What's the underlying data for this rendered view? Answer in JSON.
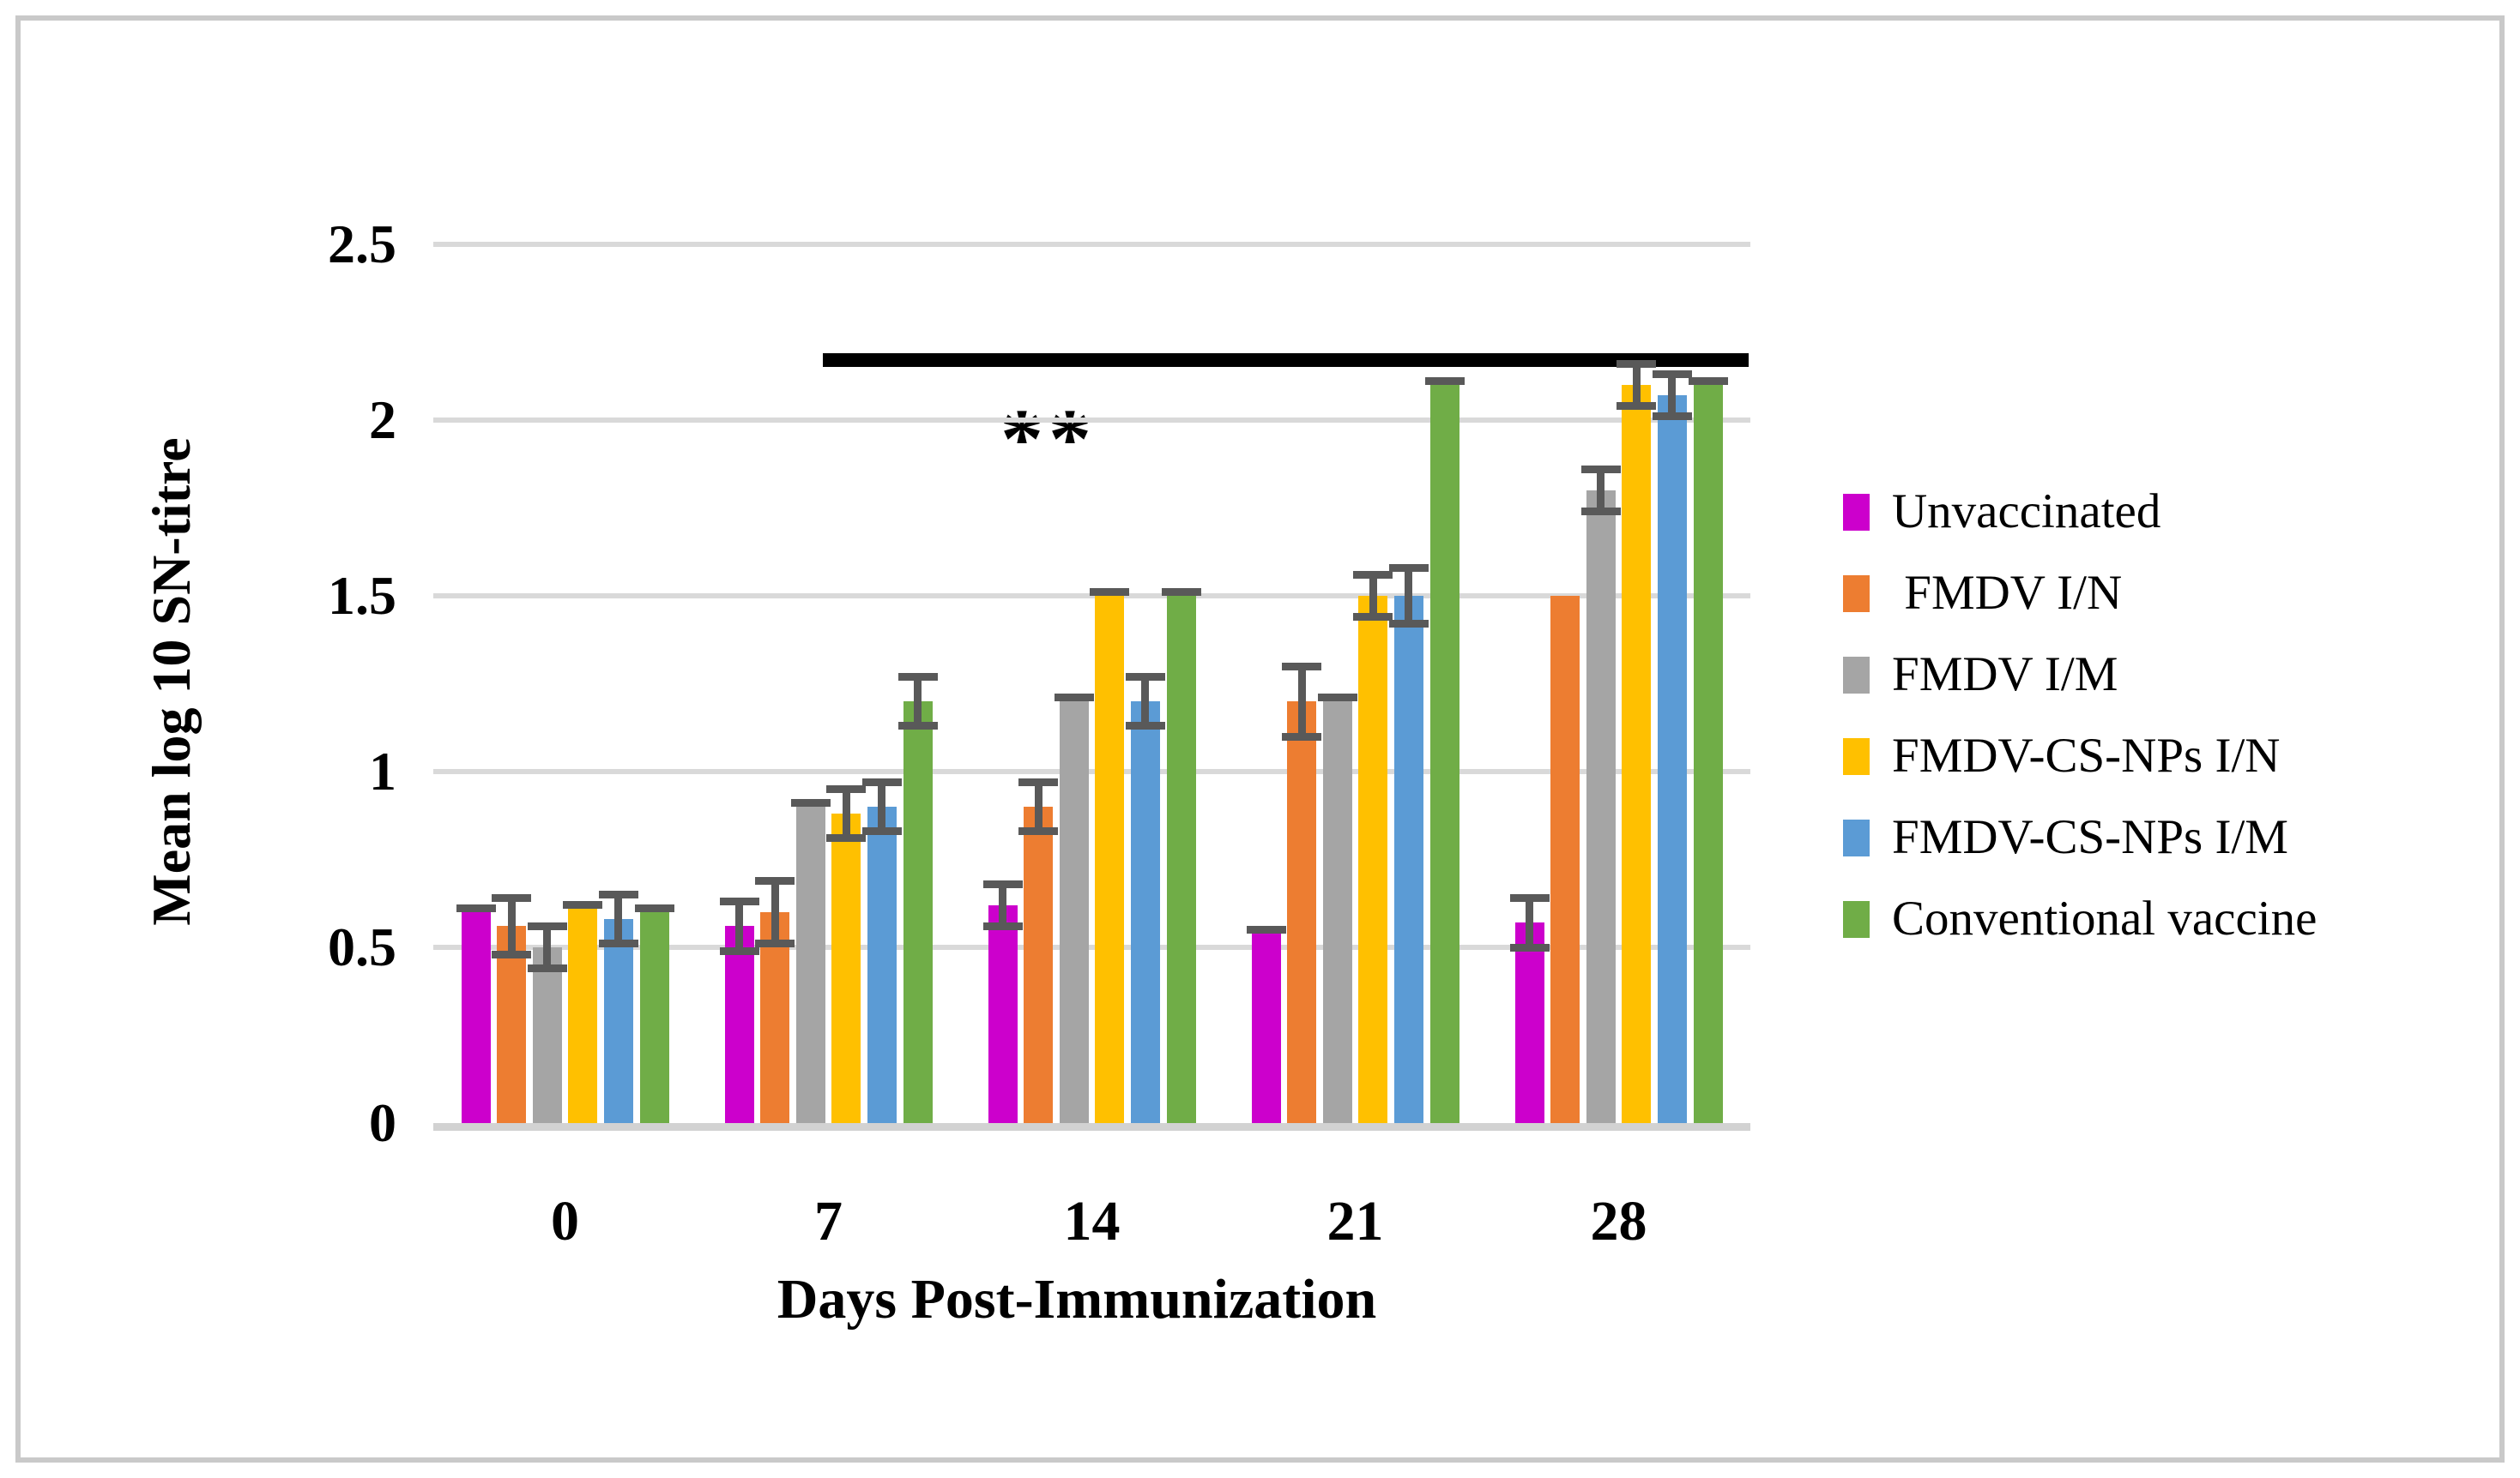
{
  "figure": {
    "background": "#ffffff",
    "border_color": "#c9c9c9"
  },
  "chart_data": {
    "type": "bar",
    "title": "",
    "xlabel": "Days Post-Immunization",
    "ylabel": "Mean log 10 SN-titre",
    "categories": [
      "0",
      "7",
      "14",
      "21",
      "28"
    ],
    "y_ticks": [
      "0",
      "0.5",
      "1",
      "1.5",
      "2",
      "2.5"
    ],
    "ylim": [
      0,
      2.5
    ],
    "grid": true,
    "legend_position": "right",
    "gridline_color": "#d9d9d9",
    "error_bar_color": "#595959",
    "series": [
      {
        "name": "Unvaccinated",
        "color": "#CC00CC",
        "values": [
          0.6,
          0.56,
          0.62,
          0.54,
          0.57
        ],
        "errors": [
          0.02,
          0.07,
          0.06,
          0.02,
          0.07
        ]
      },
      {
        "name": " FMDV I/N",
        "color": "#ED7D31",
        "values": [
          0.56,
          0.6,
          0.9,
          1.2,
          1.5
        ],
        "errors": [
          0.08,
          0.09,
          0.07,
          0.1,
          0
        ]
      },
      {
        "name": "FMDV I/M",
        "color": "#A5A5A5",
        "values": [
          0.5,
          0.9,
          1.2,
          1.2,
          1.8
        ],
        "errors": [
          0.06,
          0.02,
          0.02,
          0.02,
          0.06
        ]
      },
      {
        "name": "FMDV-CS-NPs I/N",
        "color": "#FFC000",
        "values": [
          0.61,
          0.88,
          1.5,
          1.5,
          2.1
        ],
        "errors": [
          0.02,
          0.07,
          0.02,
          0.06,
          0.06
        ]
      },
      {
        "name": "FMDV-CS-NPs I/M",
        "color": "#5B9BD5",
        "values": [
          0.58,
          0.9,
          1.2,
          1.5,
          2.07
        ],
        "errors": [
          0.07,
          0.07,
          0.07,
          0.08,
          0.06
        ]
      },
      {
        "name": "Conventional vaccine",
        "color": "#70AD47",
        "values": [
          0.6,
          1.2,
          1.5,
          2.1,
          2.1
        ],
        "errors": [
          0.02,
          0.07,
          0.02,
          0.02,
          0.02
        ]
      }
    ],
    "annotations": {
      "significance_label": "**",
      "significance_line": {
        "y_value": 2.17,
        "spans_categories": [
          "7",
          "28"
        ],
        "color": "#000000"
      }
    }
  }
}
